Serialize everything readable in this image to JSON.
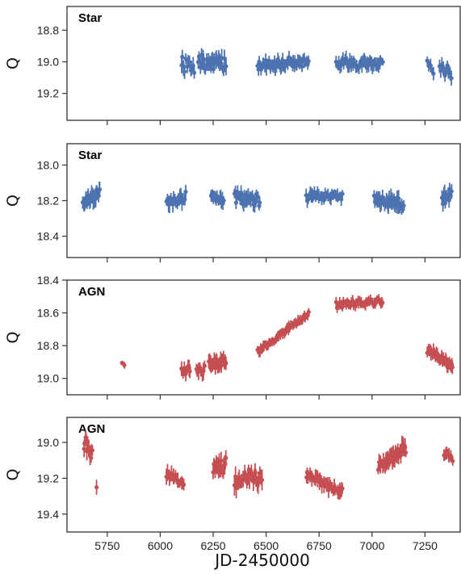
{
  "chart_data": {
    "type": "scatter",
    "shared_x": {
      "xlabel": "JD-2450000",
      "xlim": [
        5560,
        7420
      ],
      "ticks": [
        5750,
        6000,
        6250,
        6500,
        6750,
        7000,
        7250
      ],
      "tick_labels": [
        "5750",
        "6000",
        "6250",
        "6500",
        "6750",
        "7000",
        "7250"
      ]
    },
    "colors": {
      "Star": "#4c72b0",
      "AGN": "#c44e52"
    },
    "panels": [
      {
        "label": "Star",
        "ylabel": "Q",
        "ylim": [
          19.37,
          18.65
        ],
        "ticks": [
          18.8,
          19.0,
          19.2
        ],
        "tick_labels": [
          "18.8",
          "19.0",
          "19.2"
        ],
        "color": "#4c72b0",
        "segments": [
          {
            "x0": 6100,
            "x1": 6160,
            "n": 12,
            "y0": 19.01,
            "y1": 19.02,
            "noise": 0.05,
            "err": 0.04,
            "seed": 11
          },
          {
            "x0": 6180,
            "x1": 6310,
            "n": 36,
            "y0": 19.0,
            "y1": 19.02,
            "noise": 0.045,
            "err": 0.045,
            "seed": 12
          },
          {
            "x0": 6460,
            "x1": 6700,
            "n": 58,
            "y0": 19.02,
            "y1": 19.0,
            "noise": 0.03,
            "err": 0.035,
            "seed": 13
          },
          {
            "x0": 6830,
            "x1": 7050,
            "n": 48,
            "y0": 19.0,
            "y1": 19.02,
            "noise": 0.03,
            "err": 0.035,
            "seed": 14
          },
          {
            "x0": 7260,
            "x1": 7290,
            "n": 6,
            "y0": 19.0,
            "y1": 19.04,
            "noise": 0.04,
            "err": 0.035,
            "seed": 15
          },
          {
            "x0": 7320,
            "x1": 7375,
            "n": 12,
            "y0": 19.03,
            "y1": 19.08,
            "noise": 0.04,
            "err": 0.035,
            "seed": 16
          }
        ]
      },
      {
        "label": "Star",
        "ylabel": "Q",
        "ylim": [
          18.52,
          17.88
        ],
        "ticks": [
          18.0,
          18.2,
          18.4
        ],
        "tick_labels": [
          "18.0",
          "18.2",
          "18.4"
        ],
        "color": "#4c72b0",
        "segments": [
          {
            "x0": 5635,
            "x1": 5715,
            "n": 30,
            "y0": 18.22,
            "y1": 18.15,
            "noise": 0.03,
            "err": 0.035,
            "seed": 21
          },
          {
            "x0": 6030,
            "x1": 6120,
            "n": 22,
            "y0": 18.22,
            "y1": 18.18,
            "noise": 0.03,
            "err": 0.035,
            "seed": 22
          },
          {
            "x0": 6240,
            "x1": 6300,
            "n": 18,
            "y0": 18.18,
            "y1": 18.2,
            "noise": 0.02,
            "err": 0.03,
            "seed": 23
          },
          {
            "x0": 6350,
            "x1": 6470,
            "n": 32,
            "y0": 18.18,
            "y1": 18.2,
            "noise": 0.035,
            "err": 0.035,
            "seed": 24
          },
          {
            "x0": 6690,
            "x1": 6860,
            "n": 36,
            "y0": 18.18,
            "y1": 18.17,
            "noise": 0.025,
            "err": 0.03,
            "seed": 25
          },
          {
            "x0": 7010,
            "x1": 7150,
            "n": 40,
            "y0": 18.19,
            "y1": 18.22,
            "noise": 0.03,
            "err": 0.035,
            "seed": 26
          },
          {
            "x0": 7330,
            "x1": 7375,
            "n": 12,
            "y0": 18.2,
            "y1": 18.16,
            "noise": 0.035,
            "err": 0.035,
            "seed": 27
          }
        ]
      },
      {
        "label": "AGN",
        "ylabel": "Q",
        "ylim": [
          19.1,
          18.4
        ],
        "ticks": [
          18.4,
          18.6,
          18.8,
          19.0
        ],
        "tick_labels": [
          "18.4",
          "18.6",
          "18.8",
          "19.0"
        ],
        "color": "#c44e52",
        "segments": [
          {
            "x0": 5820,
            "x1": 5830,
            "n": 2,
            "y0": 18.91,
            "y1": 18.92,
            "noise": 0.005,
            "err": 0.02,
            "seed": 31
          },
          {
            "x0": 6100,
            "x1": 6140,
            "n": 10,
            "y0": 18.97,
            "y1": 18.94,
            "noise": 0.04,
            "err": 0.04,
            "seed": 32
          },
          {
            "x0": 6170,
            "x1": 6210,
            "n": 8,
            "y0": 18.98,
            "y1": 18.95,
            "noise": 0.04,
            "err": 0.04,
            "seed": 33
          },
          {
            "x0": 6230,
            "x1": 6310,
            "n": 24,
            "y0": 18.92,
            "y1": 18.9,
            "noise": 0.03,
            "err": 0.035,
            "seed": 34
          },
          {
            "x0": 6460,
            "x1": 6700,
            "n": 64,
            "y0": 18.84,
            "y1": 18.6,
            "noise": 0.015,
            "err": 0.025,
            "seed": 35
          },
          {
            "x0": 6830,
            "x1": 7050,
            "n": 52,
            "y0": 18.55,
            "y1": 18.53,
            "noise": 0.02,
            "err": 0.025,
            "seed": 36
          },
          {
            "x0": 7260,
            "x1": 7380,
            "n": 34,
            "y0": 18.82,
            "y1": 18.93,
            "noise": 0.025,
            "err": 0.03,
            "seed": 37
          }
        ]
      },
      {
        "label": "AGN",
        "ylabel": "Q",
        "ylim": [
          19.5,
          18.86
        ],
        "ticks": [
          19.0,
          19.2,
          19.4
        ],
        "tick_labels": [
          "19.0",
          "19.2",
          "19.4"
        ],
        "color": "#c44e52",
        "segments": [
          {
            "x0": 5640,
            "x1": 5680,
            "n": 12,
            "y0": 19.0,
            "y1": 19.06,
            "noise": 0.04,
            "err": 0.04,
            "seed": 41
          },
          {
            "x0": 5700,
            "x1": 5702,
            "n": 1,
            "y0": 19.25,
            "y1": 19.25,
            "noise": 0.0,
            "err": 0.05,
            "seed": 42
          },
          {
            "x0": 6030,
            "x1": 6110,
            "n": 18,
            "y0": 19.17,
            "y1": 19.22,
            "noise": 0.025,
            "err": 0.035,
            "seed": 43
          },
          {
            "x0": 6250,
            "x1": 6310,
            "n": 20,
            "y0": 19.14,
            "y1": 19.12,
            "noise": 0.04,
            "err": 0.04,
            "seed": 44
          },
          {
            "x0": 6350,
            "x1": 6480,
            "n": 30,
            "y0": 19.22,
            "y1": 19.2,
            "noise": 0.04,
            "err": 0.045,
            "seed": 45
          },
          {
            "x0": 6690,
            "x1": 6860,
            "n": 40,
            "y0": 19.18,
            "y1": 19.28,
            "noise": 0.025,
            "err": 0.035,
            "seed": 46
          },
          {
            "x0": 7030,
            "x1": 7160,
            "n": 38,
            "y0": 19.14,
            "y1": 19.03,
            "noise": 0.03,
            "err": 0.04,
            "seed": 47
          },
          {
            "x0": 7340,
            "x1": 7380,
            "n": 10,
            "y0": 19.06,
            "y1": 19.09,
            "noise": 0.02,
            "err": 0.03,
            "seed": 48
          }
        ]
      }
    ]
  }
}
